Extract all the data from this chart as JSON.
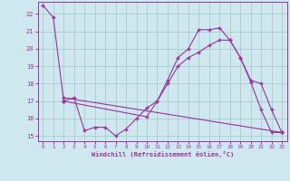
{
  "xlabel": "Windchill (Refroidissement éolien,°C)",
  "background_color": "#cfe8f0",
  "grid_color": "#a8cccc",
  "line_color": "#993399",
  "xlim": [
    -0.5,
    23.5
  ],
  "ylim": [
    14.7,
    22.7
  ],
  "xticks": [
    0,
    1,
    2,
    3,
    4,
    5,
    6,
    7,
    8,
    9,
    10,
    11,
    12,
    13,
    14,
    15,
    16,
    17,
    18,
    19,
    20,
    21,
    22,
    23
  ],
  "yticks": [
    15,
    16,
    17,
    18,
    19,
    20,
    21,
    22
  ],
  "lines": [
    {
      "x": [
        0,
        1,
        2
      ],
      "y": [
        22.5,
        21.8,
        17.0
      ]
    },
    {
      "x": [
        2,
        3,
        4,
        5,
        6,
        7,
        8,
        9,
        10,
        11,
        12,
        13,
        14,
        15,
        16,
        17,
        18,
        19,
        20,
        21,
        22,
        23
      ],
      "y": [
        17.0,
        17.2,
        15.3,
        15.5,
        15.5,
        15.0,
        15.4,
        16.0,
        16.6,
        17.0,
        18.2,
        19.5,
        20.0,
        21.1,
        21.1,
        21.2,
        20.5,
        19.5,
        18.1,
        16.5,
        15.2,
        15.2
      ]
    },
    {
      "x": [
        2,
        10,
        11,
        12,
        13,
        14,
        15,
        16,
        17,
        18,
        19,
        20,
        21,
        22,
        23
      ],
      "y": [
        17.0,
        16.1,
        17.0,
        18.0,
        19.0,
        19.5,
        19.8,
        20.2,
        20.5,
        20.5,
        19.5,
        18.2,
        18.0,
        16.5,
        15.2
      ]
    },
    {
      "x": [
        2,
        23
      ],
      "y": [
        17.2,
        15.2
      ]
    }
  ]
}
